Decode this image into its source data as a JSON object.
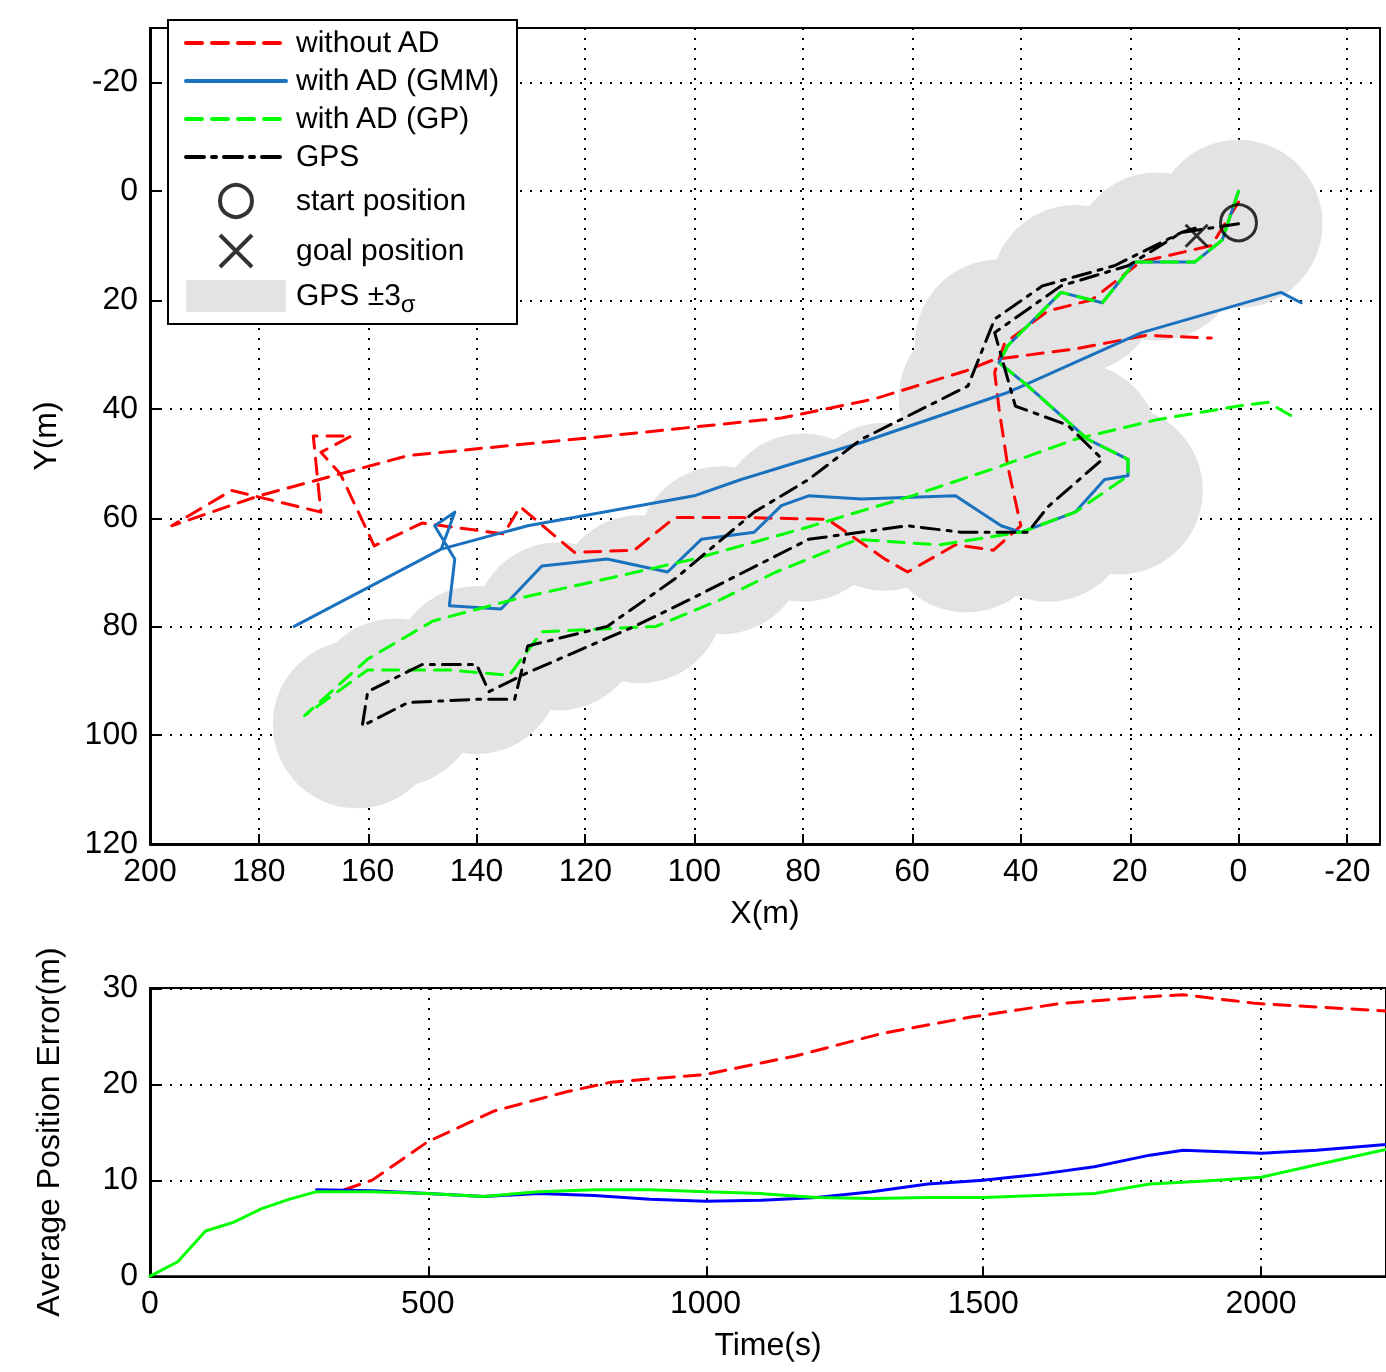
{
  "chart_data": [
    {
      "type": "line",
      "xlabel": "X(m)",
      "ylabel": "Y(m)",
      "xlim": [
        200,
        -26
      ],
      "ylim": [
        120,
        -30
      ],
      "xticks": [
        200,
        180,
        160,
        140,
        120,
        100,
        80,
        60,
        40,
        20,
        0,
        -20
      ],
      "yticks": [
        -20,
        0,
        20,
        40,
        60,
        80,
        100,
        120
      ],
      "grid": true,
      "legend": "top left",
      "series": [
        {
          "name": "without AD",
          "line_style": "dashed",
          "marker": "none",
          "color": "#ff0000",
          "x": [
            0,
            5,
            18,
            27,
            35,
            43,
            44.8,
            44,
            42.4,
            40,
            45,
            52,
            60.8,
            65,
            75.5,
            91,
            103.6,
            111,
            122,
            132,
            135,
            150,
            158.8,
            165,
            168.6,
            163,
            170,
            168.6,
            185,
            196,
            180,
            152.6,
            116,
            84,
            67,
            50,
            44.8,
            30,
            17,
            5
          ],
          "values": [
            2,
            10,
            13,
            20,
            22,
            28,
            33.3,
            40,
            50.5,
            61.5,
            66,
            65,
            70,
            67.6,
            60.3,
            60,
            60,
            66,
            66.4,
            58,
            63,
            61,
            65.2,
            52,
            48,
            45,
            45,
            59,
            55,
            61.5,
            56,
            48.6,
            45,
            41.7,
            38.2,
            33,
            30.9,
            29,
            26.5,
            27
          ]
        },
        {
          "name": "with AD (GMM)",
          "line_style": "solid",
          "marker": "none",
          "color": "#1a72bf",
          "x": [
            0,
            3,
            8,
            19,
            25,
            32.6,
            37.5,
            42.4,
            44,
            38.7,
            27.7,
            20.3,
            20.3,
            24.6,
            30,
            40,
            43.6,
            52,
            69.3,
            79,
            84,
            89,
            98.7,
            104.9,
            116,
            128,
            135.5,
            145,
            144,
            147.7,
            144,
            146.5,
            173.5,
            146.5,
            130.6,
            100,
            91.4,
            69.3,
            42.4,
            17.8,
            -7.8,
            -11.5
          ],
          "values": [
            0,
            9,
            13,
            13,
            20.5,
            18.6,
            23.5,
            28.4,
            31.5,
            35.8,
            45.6,
            49.3,
            52.3,
            53,
            59,
            62.7,
            61.5,
            56,
            56.6,
            56,
            57.8,
            62.7,
            64,
            70,
            67.6,
            68.9,
            76.8,
            76.2,
            67.6,
            61.5,
            59,
            65.8,
            80,
            65.8,
            61.5,
            56,
            53,
            46.2,
            37,
            26,
            18.6,
            20.5
          ]
        },
        {
          "name": "with AD (GP)",
          "line_style": "dashed",
          "marker": "none",
          "color": "#00ff00",
          "x": [
            0,
            3,
            8,
            19,
            25,
            32.6,
            37.5,
            42.4,
            44,
            38.7,
            27.7,
            20.3,
            20.3,
            30,
            40,
            55,
            70,
            85,
            95,
            107,
            128,
            134,
            145,
            160,
            171.6,
            160,
            148,
            133,
            115,
            100,
            80,
            60,
            45,
            30,
            15,
            0,
            -5.4,
            -9.7
          ],
          "values": [
            0,
            9,
            13,
            13,
            20.5,
            18.6,
            23.5,
            28.4,
            31.5,
            35.8,
            45.6,
            49.3,
            52.3,
            59,
            62.7,
            65,
            64,
            70,
            75,
            80,
            81,
            89,
            88,
            88,
            96.4,
            86,
            79,
            75,
            71,
            67.6,
            62,
            56,
            51,
            45.6,
            42,
            39.5,
            38.8,
            41.3
          ]
        },
        {
          "name": "GPS",
          "line_style": "dashdot",
          "marker": "none",
          "color": "#000000",
          "x": [
            0,
            10.5,
            20.3,
            32.6,
            44.8,
            41,
            31.4,
            25,
            35,
            38.7,
            51,
            60.8,
            79,
            100.7,
            111,
            130.6,
            137.7,
            140,
            150,
            160,
            161,
            152.6,
            140,
            133,
            130.6,
            116,
            103.6,
            89,
            79,
            69.3,
            49.7,
            44.8,
            36,
            22.8,
            10.5,
            6.8
          ],
          "values": [
            6,
            7.6,
            13.7,
            17.4,
            26,
            39.5,
            43,
            49.3,
            58,
            62.7,
            62.7,
            61.5,
            64,
            75,
            80,
            88.5,
            92,
            87,
            87,
            92,
            98.3,
            94,
            93.4,
            93.4,
            83.6,
            80,
            71.3,
            59,
            53,
            45.6,
            35.8,
            23.5,
            17.4,
            13.7,
            7.6,
            6.4
          ]
        },
        {
          "name": "start position",
          "type": "scatter",
          "marker": "circle",
          "color": "#000000",
          "x": [
            0
          ],
          "values": [
            5.8
          ]
        },
        {
          "name": "goal position",
          "type": "scatter",
          "marker": "cross",
          "color": "#000000",
          "x": [
            7.7
          ],
          "values": [
            8.2
          ]
        },
        {
          "name": "GPS ±3$_{σ}$",
          "type": "bubble",
          "color": "#e3e3e3",
          "x": [
            0,
            15,
            30,
            44,
            47,
            30,
            22,
            35,
            50,
            65,
            80,
            95,
            110,
            125,
            140,
            155,
            162
          ],
          "values": [
            6,
            12,
            18,
            28,
            38,
            47,
            55,
            60,
            62,
            58,
            60,
            66,
            75,
            80,
            88,
            94,
            98
          ],
          "sizes": [
            1,
            1,
            1,
            1,
            1,
            1,
            1,
            1,
            1,
            1,
            1,
            1,
            1,
            1,
            1,
            1,
            1
          ]
        }
      ]
    },
    {
      "type": "line",
      "xlabel": "Time(s)",
      "ylabel": "Average Position Error(m)",
      "xlim": [
        0,
        2225
      ],
      "ylim": [
        0,
        30
      ],
      "xticks": [
        0,
        500,
        1000,
        1500,
        2000
      ],
      "yticks": [
        0,
        10,
        20,
        30
      ],
      "grid": true,
      "series": [
        {
          "line_style": "dashed",
          "marker": "none",
          "color": "#ff0000",
          "x": [
            350,
            400,
            500,
            620,
            750,
            830,
            1000,
            1160,
            1320,
            1480,
            1640,
            1800,
            1860,
            1990,
            2225
          ],
          "values": [
            9,
            10,
            14,
            17.2,
            19.2,
            20.2,
            21,
            22.9,
            25.3,
            27,
            28.4,
            29.1,
            29.3,
            28.4,
            27.6
          ]
        },
        {
          "line_style": "solid",
          "marker": "none",
          "color": "#0000ff",
          "x": [
            300,
            400,
            500,
            600,
            700,
            800,
            900,
            1000,
            1100,
            1200,
            1300,
            1400,
            1500,
            1600,
            1700,
            1800,
            1860,
            2000,
            2100,
            2225
          ],
          "values": [
            9,
            8.9,
            8.6,
            8.3,
            8.6,
            8.4,
            8,
            7.8,
            7.9,
            8.2,
            8.8,
            9.6,
            10,
            10.6,
            11.4,
            12.6,
            13.1,
            12.8,
            13.1,
            13.7
          ]
        },
        {
          "line_style": "solid",
          "marker": "none",
          "color": "#00ff00",
          "x": [
            0,
            50,
            100,
            150,
            200,
            250,
            300,
            400,
            500,
            600,
            700,
            800,
            900,
            1000,
            1100,
            1200,
            1300,
            1400,
            1500,
            1600,
            1700,
            1800,
            1900,
            2000,
            2100,
            2225
          ],
          "values": [
            0,
            1.5,
            4.7,
            5.6,
            7,
            8,
            8.8,
            8.8,
            8.6,
            8.3,
            8.8,
            9,
            9,
            8.8,
            8.6,
            8.2,
            8.1,
            8.2,
            8.2,
            8.4,
            8.6,
            9.6,
            9.9,
            10.3,
            11.6,
            13.2
          ]
        }
      ]
    }
  ]
}
